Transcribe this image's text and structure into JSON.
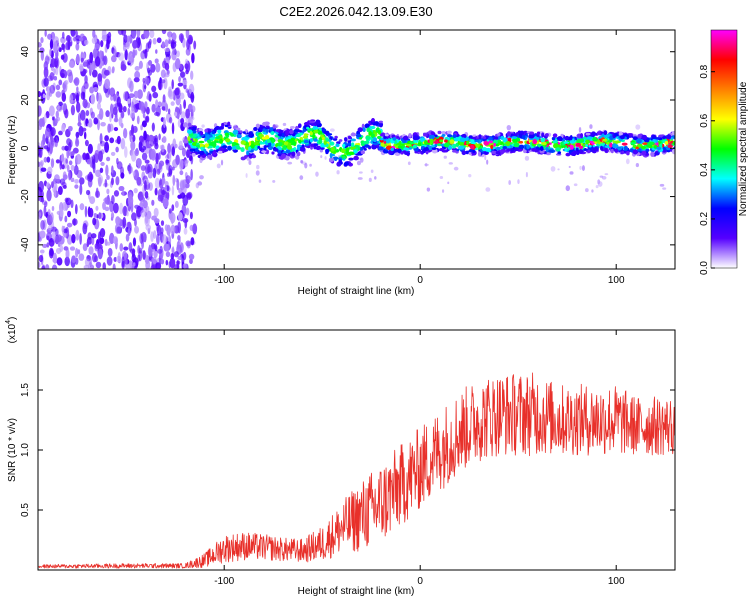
{
  "title": "C2E2.2026.042.13.09.E30",
  "chart_data": [
    {
      "type": "heatmap",
      "title": "C2E2.2026.042.13.09.E30",
      "xlabel": "Height of straight line (km)",
      "ylabel": "Frequency (Hz)",
      "xlim": [
        -195,
        130
      ],
      "ylim": [
        -50,
        49
      ],
      "x_ticks": [
        -100,
        0,
        100
      ],
      "x_tick_labels": [
        "-100",
        "0",
        "100"
      ],
      "y_ticks": [
        -40,
        -20,
        0,
        20,
        40
      ],
      "y_tick_labels": [
        "-40",
        "-20",
        "0",
        "20",
        "40"
      ],
      "colorbar": {
        "label": "Normalized spectral amplitude",
        "range": [
          0,
          0.97
        ],
        "ticks": [
          0.0,
          0.2,
          0.4,
          0.6,
          0.8
        ],
        "tick_labels": [
          "0.0",
          "0.2",
          "0.4",
          "0.6",
          "0.8"
        ],
        "colormap": [
          "#ffffff",
          "#5500ff",
          "#0000ff",
          "#00ffff",
          "#00ff00",
          "#ffff00",
          "#ff8000",
          "#ff0000",
          "#ff00ff"
        ]
      },
      "regions": [
        {
          "name": "noise-region",
          "x_range": [
            -195,
            -115
          ],
          "freq_range": [
            -50,
            49
          ],
          "amplitude": 0.1
        },
        {
          "name": "signal-band",
          "x_range": [
            -118,
            130
          ],
          "freq_center": 2,
          "freq_halfwidth": 4,
          "amplitude": 0.5
        },
        {
          "name": "peak-segment",
          "x_range": [
            -20,
            130
          ],
          "freq_center": 1,
          "amplitude": 0.8
        }
      ]
    },
    {
      "type": "line",
      "xlabel": "Height of straight line (km)",
      "ylabel": "SNR (10 * v/v)",
      "y_multiplier_label": "(x10",
      "y_multiplier_exponent": "4",
      "y_multiplier_close": ")",
      "xlim": [
        -195,
        130
      ],
      "ylim": [
        0,
        20000
      ],
      "x_ticks": [
        -100,
        0,
        100
      ],
      "x_tick_labels": [
        "-100",
        "0",
        "100"
      ],
      "y_ticks": [
        5000,
        10000,
        15000
      ],
      "y_tick_labels": [
        "0.5",
        "1.0",
        "1.5"
      ],
      "series": [
        {
          "name": "SNR",
          "color": "#e8302a",
          "envelope": {
            "x": [
              -195,
              -150,
              -120,
              -110,
              -100,
              -90,
              -80,
              -70,
              -60,
              -50,
              -40,
              -30,
              -20,
              -10,
              0,
              10,
              20,
              30,
              40,
              50,
              60,
              70,
              80,
              90,
              100,
              110,
              120,
              130
            ],
            "mean": [
              300,
              350,
              350,
              800,
              1800,
              2000,
              1900,
              1700,
              1600,
              2200,
              3500,
              4500,
              5500,
              7000,
              8500,
              10000,
              11500,
              12500,
              13000,
              13000,
              13000,
              12500,
              12500,
              12500,
              12500,
              12000,
              12000,
              12000
            ],
            "spread": [
              150,
              200,
              200,
              600,
              1200,
              1200,
              1100,
              1000,
              1000,
              1500,
              2200,
              3000,
              3500,
              3500,
              3500,
              3500,
              3500,
              3500,
              3500,
              3500,
              3500,
              3000,
              3000,
              3000,
              3000,
              2500,
              2500,
              2500
            ]
          }
        }
      ]
    }
  ]
}
